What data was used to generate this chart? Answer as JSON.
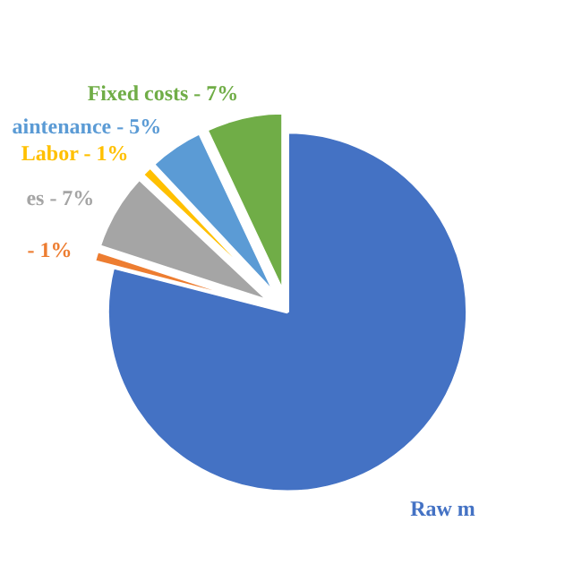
{
  "chart_data": {
    "type": "pie",
    "categories": [
      "Raw m",
      "- 1%",
      "es - 7%",
      "Labor - 1%",
      "aintenance - 5%",
      "Fixed costs - 7%"
    ],
    "values": [
      79,
      1,
      7,
      1,
      5,
      7
    ],
    "colors": [
      "#4472c4",
      "#ed7d31",
      "#a5a5a5",
      "#ffc000",
      "#5b9bd5",
      "#70ad47"
    ]
  }
}
